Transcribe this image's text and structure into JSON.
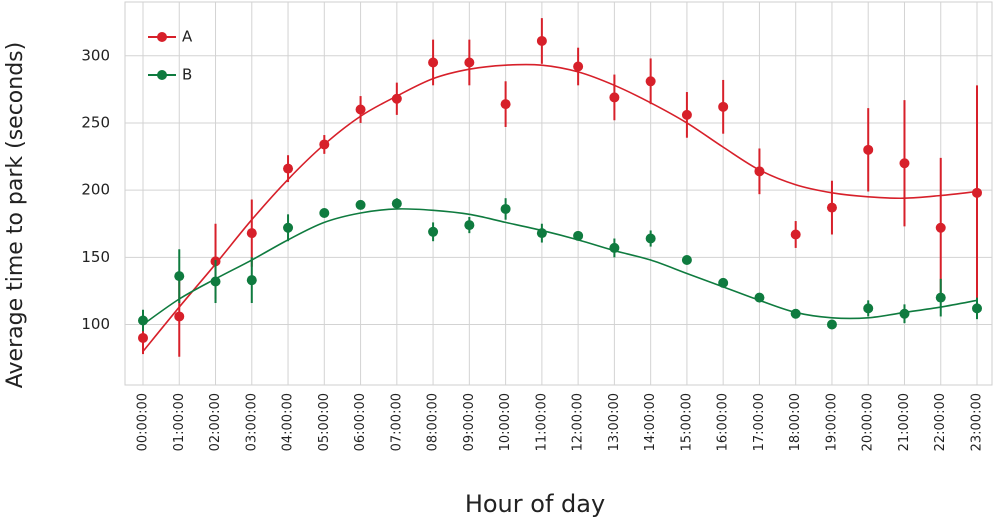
{
  "chart_data": {
    "type": "errorbar",
    "xlabel": "Hour of day",
    "ylabel": "Average time to park (seconds)",
    "categories": [
      "00:00:00",
      "01:00:00",
      "02:00:00",
      "03:00:00",
      "04:00:00",
      "05:00:00",
      "06:00:00",
      "07:00:00",
      "08:00:00",
      "09:00:00",
      "10:00:00",
      "11:00:00",
      "12:00:00",
      "13:00:00",
      "14:00:00",
      "15:00:00",
      "16:00:00",
      "17:00:00",
      "18:00:00",
      "19:00:00",
      "20:00:00",
      "21:00:00",
      "22:00:00",
      "23:00:00"
    ],
    "series": [
      {
        "name": "A",
        "color": "#d7202a",
        "values": [
          90,
          106,
          147,
          168,
          216,
          234,
          260,
          268,
          295,
          295,
          264,
          311,
          292,
          269,
          281,
          256,
          262,
          214,
          167,
          187,
          230,
          220,
          172,
          198
        ],
        "errors": [
          12,
          30,
          28,
          25,
          10,
          7,
          10,
          12,
          17,
          17,
          17,
          17,
          14,
          17,
          17,
          17,
          20,
          17,
          10,
          20,
          31,
          47,
          52,
          80
        ],
        "fit": [
          80,
          113,
          145,
          178,
          208,
          234,
          255,
          270,
          283,
          290,
          293,
          293,
          288,
          278,
          265,
          250,
          232,
          215,
          204,
          198,
          195,
          194,
          196,
          199
        ]
      },
      {
        "name": "B",
        "color": "#0f7b3f",
        "values": [
          103,
          136,
          132,
          133,
          172,
          183,
          189,
          190,
          169,
          174,
          186,
          168,
          166,
          157,
          164,
          148,
          131,
          120,
          108,
          100,
          112,
          108,
          120,
          112
        ],
        "errors": [
          8,
          20,
          16,
          17,
          10,
          3,
          3,
          4,
          7,
          6,
          8,
          7,
          3,
          7,
          6,
          3,
          3,
          3,
          3,
          3,
          6,
          7,
          14,
          8
        ],
        "fit": [
          100,
          119,
          134,
          148,
          163,
          176,
          183,
          186,
          185,
          182,
          176,
          170,
          163,
          155,
          148,
          138,
          128,
          118,
          109,
          105,
          105,
          109,
          113,
          118
        ]
      }
    ],
    "ylim": [
      55,
      340
    ],
    "yticks": [
      100,
      150,
      200,
      250,
      300
    ],
    "grid": true,
    "legend": "upper left"
  }
}
